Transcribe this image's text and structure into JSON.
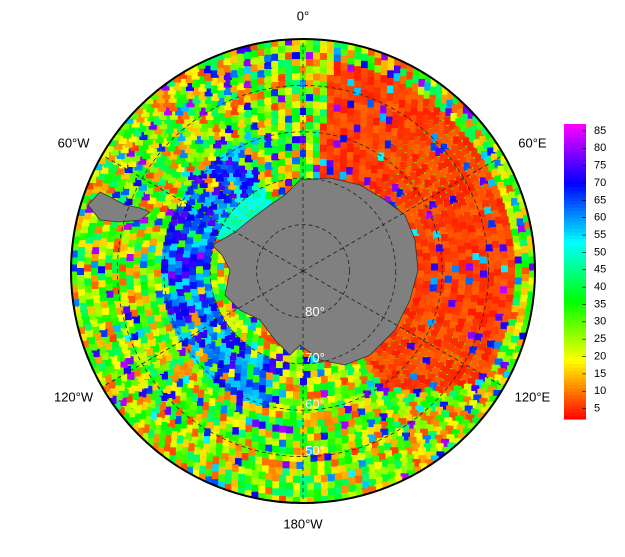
{
  "map": {
    "longitude_labels": [
      "0°",
      "60°E",
      "120°E",
      "180°W",
      "120°W",
      "60°W"
    ],
    "latitude_labels": [
      "80°",
      "70°",
      "60°",
      "50°"
    ],
    "colorbar": {
      "lim": [
        2,
        87
      ],
      "ticks": [
        5,
        10,
        15,
        20,
        25,
        30,
        35,
        40,
        45,
        50,
        55,
        60,
        65,
        70,
        75,
        80,
        85
      ]
    }
  }
}
